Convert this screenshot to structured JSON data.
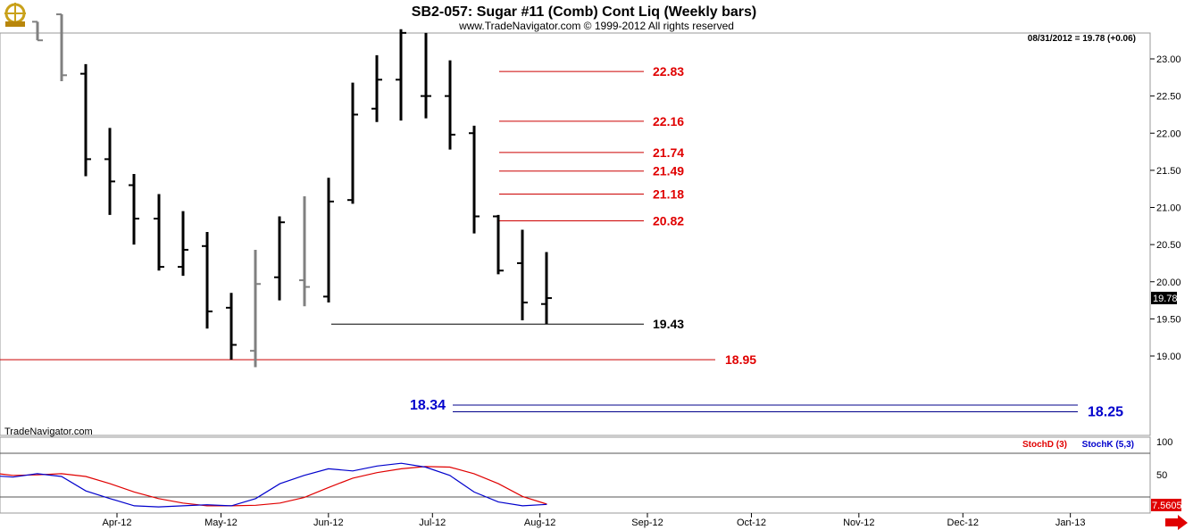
{
  "title": "SB2-057:  Sugar #11 (Comb) Cont Liq  (Weekly bars)",
  "copyright": "www.TradeNavigator.com © 1999-2012 All rights reserved",
  "watermark": "TradeNavigator.com",
  "last_readout": "08/31/2012 = 19.78 (+0.06)",
  "last_price_badge": "19.78",
  "stoch_badge": "7.5605",
  "colors": {
    "black_bar": "#000000",
    "gray_bar": "#808080",
    "red_line": "#cc0000",
    "red_label": "#e00000",
    "blue_line": "#00008b",
    "blue_label": "#0000cc",
    "stoch_d": "#e00000",
    "stoch_k": "#0000cc"
  },
  "icons": {
    "logo": "gold-ship-wheel-icon",
    "next": "red-arrow-right-icon"
  },
  "chart_data": [
    {
      "type": "ohlc",
      "x_labels": [
        "Apr-12",
        "May-12",
        "Jun-12",
        "Jul-12",
        "Aug-12",
        "Sep-12",
        "Oct-12",
        "Nov-12",
        "Dec-12",
        "Jan-13"
      ],
      "y_ticks": [
        "19.00",
        "19.50",
        "20.00",
        "20.50",
        "21.00",
        "21.50",
        "22.00",
        "22.50",
        "23.00"
      ],
      "ylim": [
        17.9,
        23.35
      ],
      "bars": [
        {
          "x": "2012-03-09",
          "o": 23.5,
          "h": 23.5,
          "l": 23.25,
          "c": 23.25,
          "color": "gray"
        },
        {
          "x": "2012-03-16",
          "o": 23.6,
          "h": 23.6,
          "l": 22.7,
          "c": 22.78,
          "color": "gray"
        },
        {
          "x": "2012-03-23",
          "o": 22.8,
          "h": 22.93,
          "l": 21.42,
          "c": 21.65,
          "color": "black"
        },
        {
          "x": "2012-03-30",
          "o": 21.65,
          "h": 22.07,
          "l": 20.9,
          "c": 21.35,
          "color": "black"
        },
        {
          "x": "2012-04-06",
          "o": 21.3,
          "h": 21.45,
          "l": 20.5,
          "c": 20.85,
          "color": "black"
        },
        {
          "x": "2012-04-13",
          "o": 20.85,
          "h": 21.18,
          "l": 20.15,
          "c": 20.2,
          "color": "black"
        },
        {
          "x": "2012-04-20",
          "o": 20.2,
          "h": 20.95,
          "l": 20.08,
          "c": 20.43,
          "color": "black"
        },
        {
          "x": "2012-04-27",
          "o": 20.48,
          "h": 20.67,
          "l": 19.37,
          "c": 19.6,
          "color": "black"
        },
        {
          "x": "2012-05-04",
          "o": 19.65,
          "h": 19.85,
          "l": 18.95,
          "c": 19.15,
          "color": "black"
        },
        {
          "x": "2012-05-11",
          "o": 19.07,
          "h": 20.43,
          "l": 18.85,
          "c": 19.97,
          "color": "gray"
        },
        {
          "x": "2012-05-18",
          "o": 20.06,
          "h": 20.88,
          "l": 19.75,
          "c": 20.8,
          "color": "black"
        },
        {
          "x": "2012-05-25",
          "o": 20.02,
          "h": 21.15,
          "l": 19.67,
          "c": 19.93,
          "color": "gray"
        },
        {
          "x": "2012-06-01",
          "o": 19.8,
          "h": 21.4,
          "l": 19.72,
          "c": 21.08,
          "color": "black"
        },
        {
          "x": "2012-06-08",
          "o": 21.1,
          "h": 22.68,
          "l": 21.05,
          "c": 22.25,
          "color": "black"
        },
        {
          "x": "2012-06-15",
          "o": 22.33,
          "h": 23.05,
          "l": 22.15,
          "c": 22.72,
          "color": "black"
        },
        {
          "x": "2012-06-22",
          "o": 22.72,
          "h": 23.4,
          "l": 22.17,
          "c": 23.35,
          "color": "black"
        },
        {
          "x": "2012-06-29",
          "o": 22.5,
          "h": 23.35,
          "l": 22.2,
          "c": 22.5,
          "color": "black"
        },
        {
          "x": "2012-07-06",
          "o": 22.5,
          "h": 22.98,
          "l": 21.78,
          "c": 21.98,
          "color": "black"
        },
        {
          "x": "2012-07-13",
          "o": 22.0,
          "h": 22.1,
          "l": 20.65,
          "c": 20.88,
          "color": "black"
        },
        {
          "x": "2012-07-20",
          "o": 20.88,
          "h": 20.9,
          "l": 20.1,
          "c": 20.15,
          "color": "black"
        },
        {
          "x": "2012-07-27",
          "o": 20.25,
          "h": 20.7,
          "l": 19.48,
          "c": 19.72,
          "color": "black"
        },
        {
          "x": "2012-08-03",
          "o": 19.7,
          "h": 20.4,
          "l": 19.43,
          "c": 19.78,
          "color": "black"
        }
      ],
      "levels": [
        {
          "value": 22.83,
          "label": "22.83",
          "color": "red"
        },
        {
          "value": 22.16,
          "label": "22.16",
          "color": "red"
        },
        {
          "value": 21.74,
          "label": "21.74",
          "color": "red"
        },
        {
          "value": 21.49,
          "label": "21.49",
          "color": "red"
        },
        {
          "value": 21.18,
          "label": "21.18",
          "color": "red"
        },
        {
          "value": 20.82,
          "label": "20.82",
          "color": "red"
        },
        {
          "value": 19.43,
          "label": "19.43",
          "color": "black"
        },
        {
          "value": 18.95,
          "label": "18.95",
          "color": "red"
        },
        {
          "value": 18.34,
          "label": "18.34",
          "color": "blue"
        },
        {
          "value": 18.25,
          "label": "18.25",
          "color": "blue"
        }
      ]
    },
    {
      "type": "line",
      "legend": [
        "StochD (3)",
        "StochK (5,3)"
      ],
      "y_ticks": [
        "100",
        "50"
      ],
      "ylim": [
        0,
        100
      ],
      "series": [
        {
          "name": "StochD (3)",
          "color": "red",
          "x": [
            "2012-02-24",
            "2012-03-02",
            "2012-03-09",
            "2012-03-16",
            "2012-03-23",
            "2012-03-30",
            "2012-04-06",
            "2012-04-13",
            "2012-04-20",
            "2012-04-27",
            "2012-05-04",
            "2012-05-11",
            "2012-05-18",
            "2012-05-25",
            "2012-06-01",
            "2012-06-08",
            "2012-06-15",
            "2012-06-22",
            "2012-06-29",
            "2012-07-06",
            "2012-07-13",
            "2012-07-20",
            "2012-07-27",
            "2012-08-03"
          ],
          "values": [
            65,
            60,
            61,
            63,
            58,
            45,
            30,
            18,
            10,
            5,
            5,
            6,
            10,
            20,
            38,
            55,
            65,
            72,
            76,
            75,
            63,
            45,
            22,
            8
          ]
        },
        {
          "name": "StochK (5,3)",
          "color": "blue",
          "x": [
            "2012-02-24",
            "2012-03-02",
            "2012-03-09",
            "2012-03-16",
            "2012-03-23",
            "2012-03-30",
            "2012-04-06",
            "2012-04-13",
            "2012-04-20",
            "2012-04-27",
            "2012-05-04",
            "2012-05-11",
            "2012-05-18",
            "2012-05-25",
            "2012-06-01",
            "2012-06-08",
            "2012-06-15",
            "2012-06-22",
            "2012-06-29",
            "2012-07-06",
            "2012-07-13",
            "2012-07-20",
            "2012-07-27",
            "2012-08-03"
          ],
          "values": [
            60,
            57,
            63,
            58,
            32,
            18,
            5,
            3,
            5,
            7,
            5,
            18,
            45,
            60,
            72,
            68,
            77,
            82,
            75,
            60,
            30,
            12,
            5,
            7.5605
          ]
        }
      ]
    }
  ]
}
